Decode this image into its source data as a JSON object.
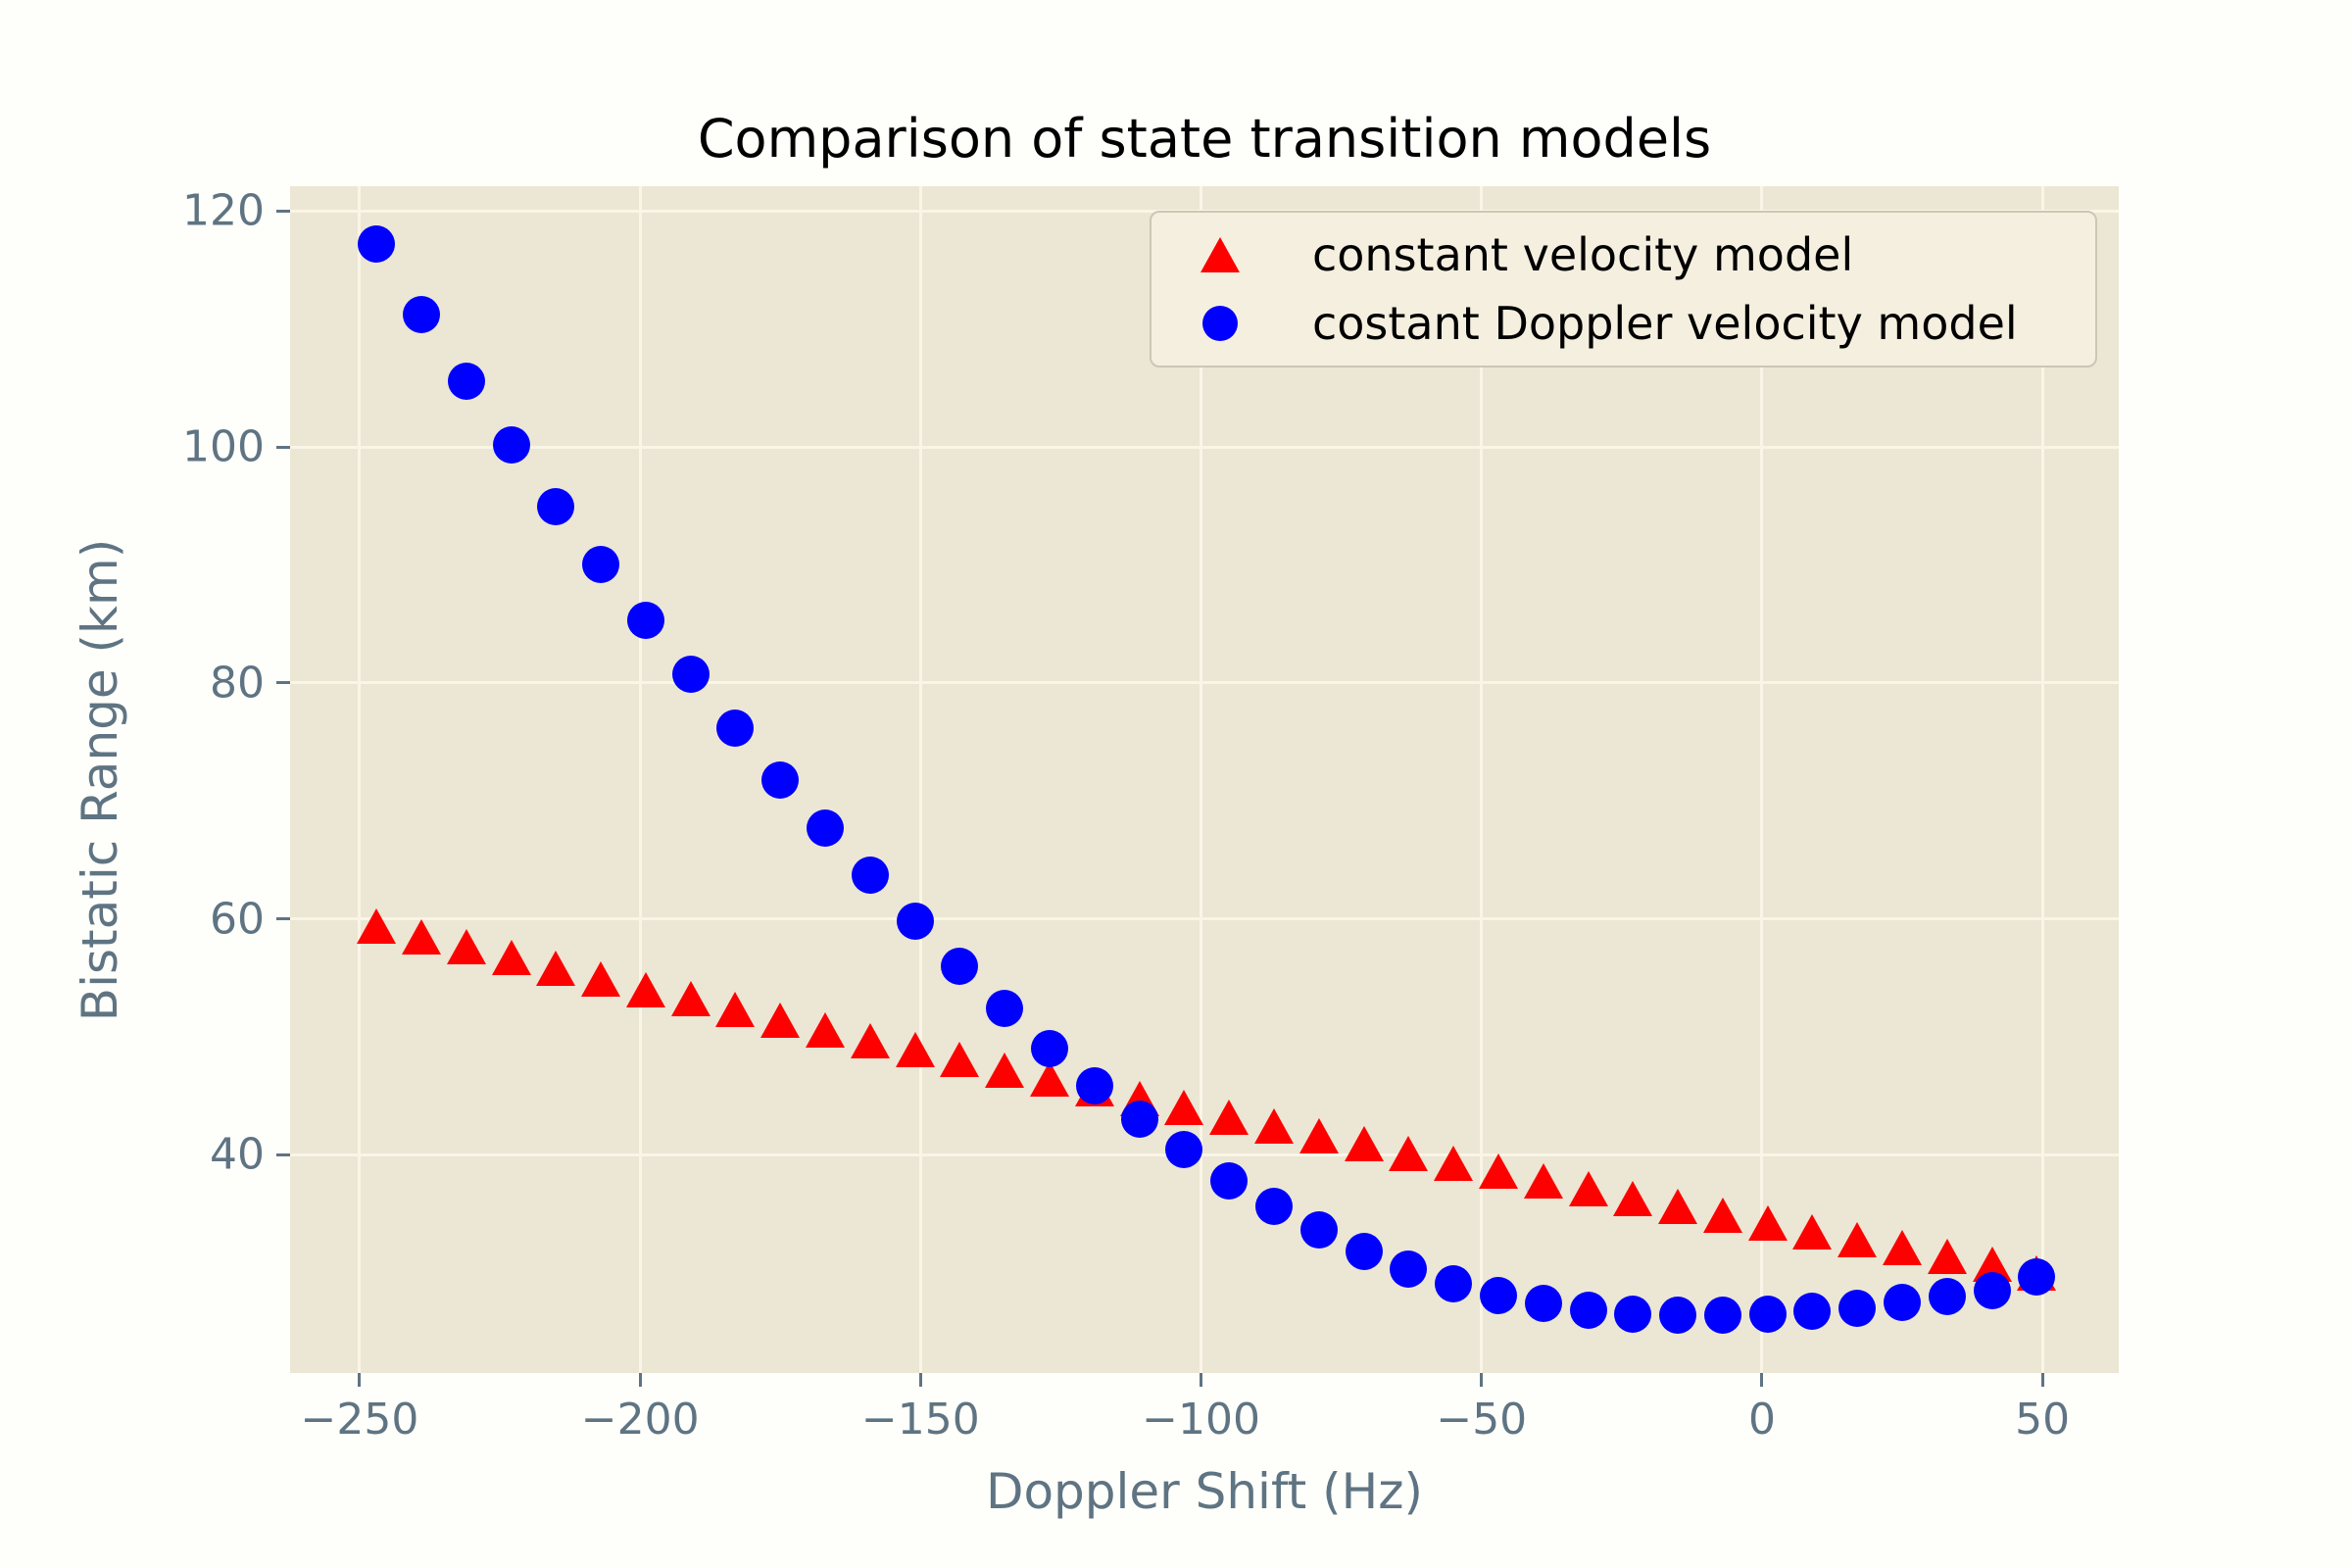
{
  "title": "Comparison of state transition models",
  "axes": {
    "xlabel": "Doppler Shift (Hz)",
    "ylabel": "Bistatic Range (km)"
  },
  "legend": {
    "items": [
      {
        "label": "constant velocity model",
        "marker": "triangle-icon",
        "color": "#ff0000"
      },
      {
        "label": "costant Doppler velocity model",
        "marker": "circle-icon",
        "color": "#0000ff"
      }
    ]
  },
  "chart_data": {
    "type": "scatter",
    "title": "Comparison of state transition models",
    "xlabel": "Doppler Shift (Hz)",
    "ylabel": "Bistatic Range (km)",
    "xlim": [
      -262.4,
      63.6
    ],
    "ylim": [
      21.5,
      122.1
    ],
    "grid": true,
    "legend_position": "upper right",
    "background_color": "#ece6d4",
    "grid_color": "#faf5e6",
    "tick_color": "#5f7482",
    "xticks": {
      "values": [
        -250,
        -200,
        -150,
        -100,
        -50,
        0,
        50
      ],
      "labels": [
        "−250",
        "−200",
        "−150",
        "−100",
        "−50",
        "0",
        "50"
      ]
    },
    "yticks": {
      "values": [
        40,
        60,
        80,
        100,
        120
      ],
      "labels": [
        "40",
        "60",
        "80",
        "100",
        "120"
      ]
    },
    "x": [
      -247,
      -239,
      -231,
      -223,
      -215,
      -207,
      -199,
      -191,
      -183,
      -175,
      -167,
      -159,
      -151,
      -143,
      -135,
      -127,
      -119,
      -111,
      -103,
      -95,
      -87,
      -79,
      -71,
      -63,
      -55,
      -47,
      -39,
      -31,
      -23,
      -15,
      -7,
      1,
      9,
      17,
      25,
      33,
      41,
      49
    ],
    "series": [
      {
        "name": "constant velocity model",
        "marker": "triangle",
        "color": "#ff0000",
        "values": [
          59.4,
          58.5,
          57.6,
          56.7,
          55.8,
          54.9,
          54.0,
          53.2,
          52.3,
          51.4,
          50.6,
          49.7,
          48.9,
          48.1,
          47.2,
          46.4,
          45.6,
          44.8,
          44.0,
          43.2,
          42.4,
          41.6,
          40.9,
          40.1,
          39.3,
          38.6,
          37.8,
          37.1,
          36.3,
          35.6,
          34.9,
          34.2,
          33.5,
          32.8,
          32.1,
          31.4,
          30.7,
          30.0
        ]
      },
      {
        "name": "costant Doppler velocity model",
        "marker": "circle",
        "color": "#0000ff",
        "values": [
          117.2,
          111.2,
          105.6,
          100.2,
          94.9,
          90.0,
          85.3,
          80.7,
          76.2,
          71.8,
          67.7,
          63.7,
          59.8,
          56.0,
          52.4,
          49.0,
          45.8,
          43.0,
          40.4,
          37.8,
          35.6,
          33.6,
          31.8,
          30.3,
          29.1,
          28.1,
          27.4,
          26.8,
          26.5,
          26.4,
          26.4,
          26.5,
          26.7,
          27.0,
          27.5,
          28.0,
          28.5,
          29.6
        ]
      }
    ]
  }
}
